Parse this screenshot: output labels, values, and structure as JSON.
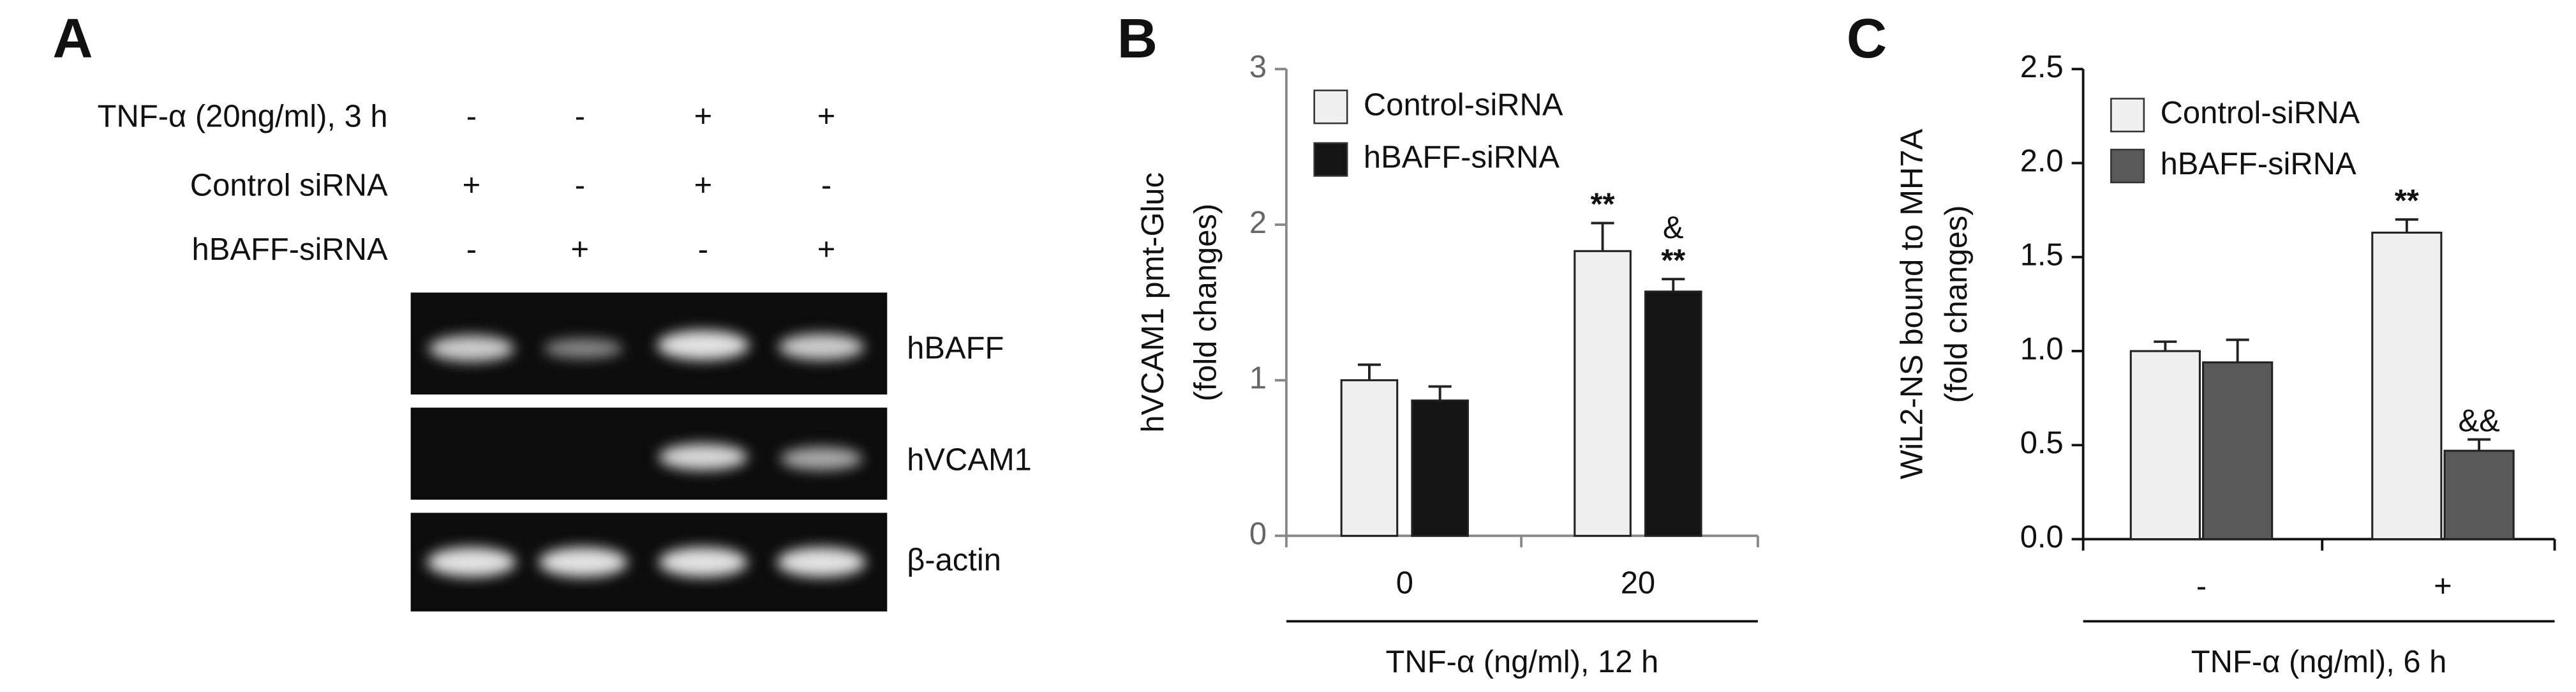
{
  "panel_a": {
    "letter": "A",
    "rows": [
      {
        "label": "TNF-α (20ng/ml), 3 h",
        "signs": [
          "-",
          "-",
          "+",
          "+"
        ]
      },
      {
        "label": "Control siRNA",
        "signs": [
          "+",
          "-",
          "+",
          "-"
        ]
      },
      {
        "label": "hBAFF-siRNA",
        "signs": [
          "-",
          "+",
          "-",
          "+"
        ]
      }
    ],
    "bands": [
      "hBAFF",
      "hVCAM1",
      "β-actin"
    ]
  },
  "chart_data": [
    {
      "type": "bar",
      "letter": "B",
      "ylabel": [
        "hVCAM1 pmt-Gluc",
        "(fold changes)"
      ],
      "xlabel": "TNF-α (ng/ml), 12 h",
      "categories": [
        "0",
        "20"
      ],
      "ylim": [
        0,
        3
      ],
      "yticks": [
        0,
        1,
        2,
        3
      ],
      "series": [
        {
          "name": "Control-siRNA",
          "color": "#f0f0f0",
          "values": [
            1.0,
            1.83
          ],
          "errors": [
            0.1,
            0.18
          ],
          "annotations": [
            null,
            [
              "**"
            ]
          ]
        },
        {
          "name": "hBAFF-siRNA",
          "color": "#141414",
          "values": [
            0.87,
            1.57
          ],
          "errors": [
            0.09,
            0.08
          ],
          "annotations": [
            null,
            [
              "&",
              "**"
            ]
          ]
        }
      ]
    },
    {
      "type": "bar",
      "letter": "C",
      "ylabel": [
        "WiL2-NS bound to MH7A",
        "(fold changes)"
      ],
      "xlabel": "TNF-α (ng/ml), 6 h",
      "categories": [
        "-",
        "+"
      ],
      "ylim": [
        0,
        2.5
      ],
      "yticks": [
        {
          "value": 0,
          "label": "0.0"
        },
        0.5,
        {
          "value": 1,
          "label": "1.0"
        },
        1.5,
        {
          "value": 2,
          "label": "2.0"
        },
        2.5
      ],
      "series": [
        {
          "name": "Control-siRNA",
          "color": "#f0f0f0",
          "values": [
            1.0,
            1.63
          ],
          "errors": [
            0.05,
            0.07
          ],
          "annotations": [
            null,
            [
              "**"
            ]
          ]
        },
        {
          "name": "hBAFF-siRNA",
          "color": "#595959",
          "values": [
            0.94,
            0.47
          ],
          "errors": [
            0.12,
            0.06
          ],
          "annotations": [
            null,
            [
              "&&"
            ]
          ]
        }
      ]
    }
  ]
}
